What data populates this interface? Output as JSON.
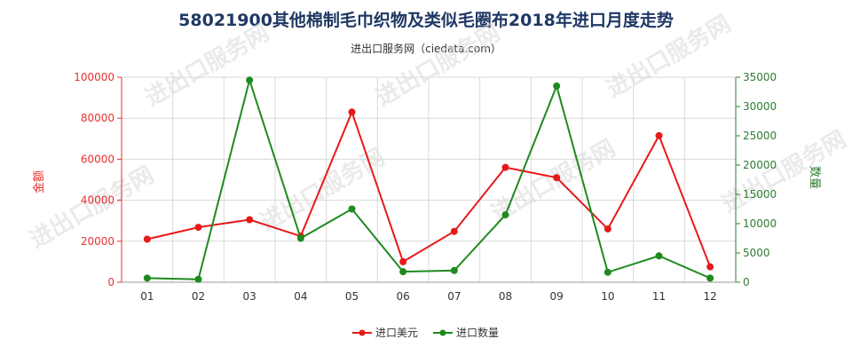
{
  "chart_data": {
    "type": "line",
    "title": "58021900其他棉制毛巾织物及类似毛圈布2018年进口月度走势",
    "subtitle": "进出口服务网（ciedata.com）",
    "categories": [
      "01",
      "02",
      "03",
      "04",
      "05",
      "06",
      "07",
      "08",
      "09",
      "10",
      "11",
      "12"
    ],
    "y_left": {
      "label": "金额",
      "lim": [
        0,
        100000
      ],
      "ticks": [
        0,
        20000,
        40000,
        60000,
        80000,
        100000
      ]
    },
    "y_right": {
      "label": "数量",
      "lim": [
        0,
        35000
      ],
      "ticks": [
        0,
        5000,
        10000,
        15000,
        20000,
        25000,
        30000,
        35000
      ]
    },
    "series": [
      {
        "name": "进口美元",
        "axis": "left",
        "color": "#e8191a",
        "values": [
          21000,
          26800,
          30500,
          22500,
          83000,
          10000,
          24800,
          56000,
          51000,
          26000,
          71500,
          7500
        ]
      },
      {
        "name": "进口数量",
        "axis": "right",
        "color": "#1e8a1e",
        "values": [
          700,
          500,
          34500,
          7500,
          12500,
          1800,
          2000,
          11500,
          33500,
          1700,
          4500,
          700
        ]
      }
    ],
    "grid": true,
    "legend_position": "bottom-center",
    "watermark": "进出口服务网"
  }
}
